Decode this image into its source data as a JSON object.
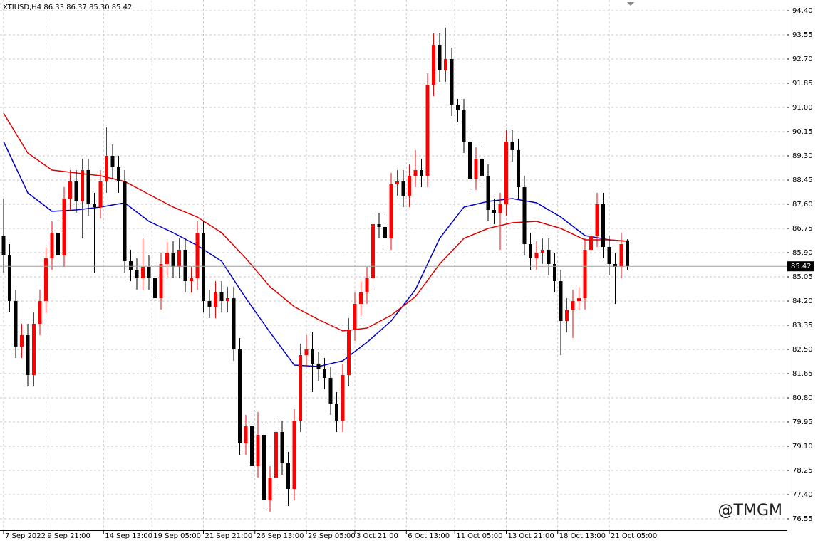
{
  "chart_data": {
    "type": "candlestick",
    "title": "XTIUSD,H4  86.33 86.37 85.30 85.42",
    "watermark": "@TMGM",
    "current_price": 85.42,
    "grid": true,
    "ylim": [
      76.15,
      94.7
    ],
    "yticks": [
      {
        "value": 94.4,
        "label": "94.40"
      },
      {
        "value": 93.55,
        "label": "93.55"
      },
      {
        "value": 92.7,
        "label": "92.70"
      },
      {
        "value": 91.85,
        "label": "91.85"
      },
      {
        "value": 91,
        "label": "91.00"
      },
      {
        "value": 90.15,
        "label": "90.15"
      },
      {
        "value": 89.3,
        "label": "89.30"
      },
      {
        "value": 88.45,
        "label": "88.45"
      },
      {
        "value": 87.6,
        "label": "87.60"
      },
      {
        "value": 86.75,
        "label": "86.75"
      },
      {
        "value": 85.9,
        "label": "85.90"
      },
      {
        "value": 85.05,
        "label": "85.05"
      },
      {
        "value": 84.2,
        "label": "84.20"
      },
      {
        "value": 83.35,
        "label": "83.35"
      },
      {
        "value": 82.5,
        "label": "82.50"
      },
      {
        "value": 81.65,
        "label": "81.65"
      },
      {
        "value": 80.8,
        "label": "80.80"
      },
      {
        "value": 79.95,
        "label": "79.95"
      },
      {
        "value": 79.1,
        "label": "79.10"
      },
      {
        "value": 78.25,
        "label": "78.25"
      },
      {
        "value": 77.4,
        "label": "77.40"
      },
      {
        "value": 76.55,
        "label": "76.55"
      }
    ],
    "xticks": [
      {
        "value": 0,
        "label": "7 Sep 2022"
      },
      {
        "value": 7,
        "label": "9 Sep 21:00"
      },
      {
        "value": 16.5,
        "label": "14 Sep 13:00"
      },
      {
        "value": 24.5,
        "label": "19 Sep 05:00"
      },
      {
        "value": 33,
        "label": "21 Sep 21:00"
      },
      {
        "value": 41.5,
        "label": "26 Sep 13:00"
      },
      {
        "value": 50,
        "label": "29 Sep 05:00"
      },
      {
        "value": 58,
        "label": "3 Oct 21:00"
      },
      {
        "value": 66.5,
        "label": "6 Oct 13:00"
      },
      {
        "value": 74.5,
        "label": "11 Oct 05:00"
      },
      {
        "value": 83,
        "label": "13 Oct 21:00"
      },
      {
        "value": 91.5,
        "label": "18 Oct 13:00"
      },
      {
        "value": 100,
        "label": "21 Oct 05:00"
      }
    ],
    "series": [
      {
        "type": "candlestick",
        "up_color": "#ff0000",
        "down_color": "#000000",
        "open": [
          86.5,
          85.8,
          84.2,
          82.6,
          83.0,
          81.6,
          83.4,
          84.2,
          85.7,
          86.6,
          85.8,
          87.8,
          88.4,
          87.7,
          88.8,
          87.6,
          87.5,
          88.4,
          89.3,
          88.9,
          88.4,
          85.6,
          85.3,
          85.0,
          85.4,
          85.0,
          84.3,
          85.5,
          85.9,
          85.4,
          86.0,
          84.9,
          85.0,
          86.6,
          84.2,
          84.0,
          84.5,
          84.2,
          84.3,
          82.5,
          79.2,
          79.8,
          78.4,
          79.5,
          77.2,
          78.0,
          79.6,
          78.5,
          77.6,
          80.0,
          82.3,
          82.5,
          82.0,
          81.8,
          81.5,
          80.6,
          80.0,
          81.6,
          83.2,
          84.1,
          84.5,
          85.0,
          86.9,
          86.8,
          86.4,
          88.3,
          88.4,
          87.9,
          88.6,
          88.8,
          88.6,
          91.8,
          93.2,
          92.3,
          92.7,
          91.1,
          90.9,
          89.8,
          88.5,
          89.2,
          88.6,
          87.4,
          87.3,
          87.6,
          89.8,
          89.5,
          88.2,
          86.2,
          85.7,
          85.9,
          86.0,
          85.5,
          84.9,
          83.5,
          83.9,
          84.2,
          84.3,
          86.0,
          86.5,
          87.6,
          86.1,
          85.5,
          85.4,
          86.33
        ],
        "high": [
          87.8,
          86.2,
          84.6,
          83.4,
          83.4,
          83.8,
          84.6,
          86.1,
          87.0,
          87.0,
          88.2,
          88.8,
          88.8,
          89.2,
          89.2,
          88.0,
          88.8,
          90.3,
          89.7,
          89.3,
          88.8,
          86.0,
          85.7,
          86.4,
          85.8,
          85.4,
          85.9,
          86.3,
          86.3,
          86.4,
          86.4,
          85.4,
          87.0,
          87.0,
          84.6,
          84.9,
          84.9,
          84.7,
          84.7,
          82.9,
          80.2,
          80.2,
          80.3,
          79.9,
          78.4,
          80.0,
          80.0,
          78.9,
          80.4,
          82.7,
          83.0,
          83.1,
          82.4,
          82.2,
          81.9,
          81.0,
          82.0,
          83.6,
          84.5,
          84.9,
          85.4,
          87.3,
          87.3,
          87.2,
          88.7,
          88.8,
          88.8,
          89.0,
          89.5,
          89.2,
          92.2,
          93.6,
          93.6,
          93.8,
          93.1,
          91.3,
          91.3,
          90.2,
          89.6,
          89.6,
          89.0,
          87.8,
          88.0,
          90.2,
          90.2,
          89.9,
          88.6,
          86.6,
          86.3,
          86.4,
          86.4,
          85.9,
          85.3,
          84.3,
          84.6,
          84.7,
          86.4,
          86.9,
          88.0,
          88.0,
          86.5,
          85.9,
          86.6,
          86.37
        ],
        "low": [
          85.2,
          83.8,
          82.2,
          82.2,
          81.2,
          81.2,
          83.0,
          83.8,
          85.3,
          85.4,
          85.4,
          87.4,
          87.3,
          86.4,
          87.2,
          85.2,
          87.1,
          88.0,
          88.5,
          88.0,
          85.2,
          84.9,
          84.6,
          84.6,
          84.6,
          82.2,
          83.9,
          85.1,
          85.0,
          85.0,
          84.5,
          84.5,
          84.6,
          83.8,
          83.6,
          83.6,
          83.8,
          83.8,
          82.1,
          78.8,
          78.8,
          78.0,
          78.0,
          76.9,
          76.8,
          77.6,
          78.1,
          77.0,
          77.2,
          79.6,
          81.9,
          81.0,
          81.4,
          81.1,
          80.2,
          79.6,
          79.6,
          81.2,
          82.8,
          83.7,
          84.1,
          84.6,
          86.4,
          86.0,
          86.0,
          87.9,
          87.5,
          87.5,
          88.2,
          88.2,
          88.2,
          91.4,
          91.9,
          91.9,
          90.7,
          90.5,
          89.4,
          88.1,
          88.1,
          88.2,
          87.0,
          86.9,
          86.0,
          87.2,
          89.1,
          87.8,
          85.8,
          85.3,
          85.3,
          85.5,
          85.1,
          84.5,
          82.3,
          83.1,
          82.9,
          83.9,
          83.9,
          85.6,
          86.1,
          85.7,
          85.1,
          84.1,
          85.0,
          85.3
        ],
        "close": [
          85.8,
          84.2,
          82.6,
          83.0,
          81.6,
          83.4,
          84.2,
          85.7,
          86.6,
          85.8,
          87.8,
          88.4,
          87.7,
          88.8,
          87.6,
          87.5,
          88.4,
          89.3,
          88.9,
          88.4,
          85.6,
          85.3,
          85.0,
          85.4,
          85.0,
          84.3,
          85.5,
          85.9,
          85.4,
          86.0,
          84.9,
          85.0,
          86.6,
          84.2,
          84.0,
          84.5,
          84.2,
          84.3,
          82.5,
          79.2,
          79.8,
          78.4,
          79.5,
          77.2,
          78.0,
          79.6,
          78.5,
          77.6,
          80.0,
          82.3,
          82.5,
          82.0,
          81.8,
          81.5,
          80.6,
          80.0,
          81.6,
          83.2,
          84.1,
          84.5,
          85.0,
          86.9,
          86.8,
          86.4,
          88.3,
          88.4,
          87.9,
          88.6,
          88.8,
          88.6,
          91.8,
          93.2,
          92.3,
          92.7,
          91.1,
          90.9,
          89.8,
          88.5,
          89.2,
          88.6,
          87.4,
          87.3,
          87.6,
          89.8,
          89.5,
          88.2,
          86.2,
          85.7,
          85.9,
          86.0,
          85.5,
          84.9,
          83.5,
          83.9,
          84.2,
          84.3,
          86.0,
          86.5,
          87.6,
          86.1,
          85.5,
          85.4,
          86.2,
          85.42
        ]
      },
      {
        "type": "line",
        "color": "#0000c0",
        "x": [
          0,
          4,
          8,
          12,
          16,
          20,
          24,
          28,
          32,
          36,
          40,
          44,
          48,
          52,
          56,
          60,
          64,
          68,
          72,
          76,
          80,
          84,
          88,
          92,
          96,
          100,
          103
        ],
        "values": [
          89.8,
          88.0,
          87.35,
          87.4,
          87.5,
          87.65,
          87.0,
          86.6,
          86.15,
          85.6,
          84.3,
          83.1,
          81.95,
          81.9,
          82.1,
          82.75,
          83.5,
          84.6,
          86.4,
          87.5,
          87.7,
          87.8,
          87.65,
          87.15,
          86.5,
          86.35,
          86.3
        ]
      },
      {
        "type": "line",
        "color": "#e00000",
        "x": [
          0,
          4,
          8,
          12,
          16,
          20,
          24,
          28,
          32,
          36,
          40,
          44,
          48,
          52,
          56,
          60,
          64,
          68,
          72,
          76,
          80,
          84,
          88,
          92,
          96,
          100,
          103
        ],
        "values": [
          90.8,
          89.4,
          88.8,
          88.7,
          88.6,
          88.4,
          87.95,
          87.5,
          87.15,
          86.6,
          85.7,
          84.7,
          84.0,
          83.55,
          83.15,
          83.25,
          83.7,
          84.35,
          85.5,
          86.4,
          86.75,
          86.95,
          87.0,
          86.75,
          86.35,
          86.35,
          86.3
        ]
      }
    ]
  }
}
